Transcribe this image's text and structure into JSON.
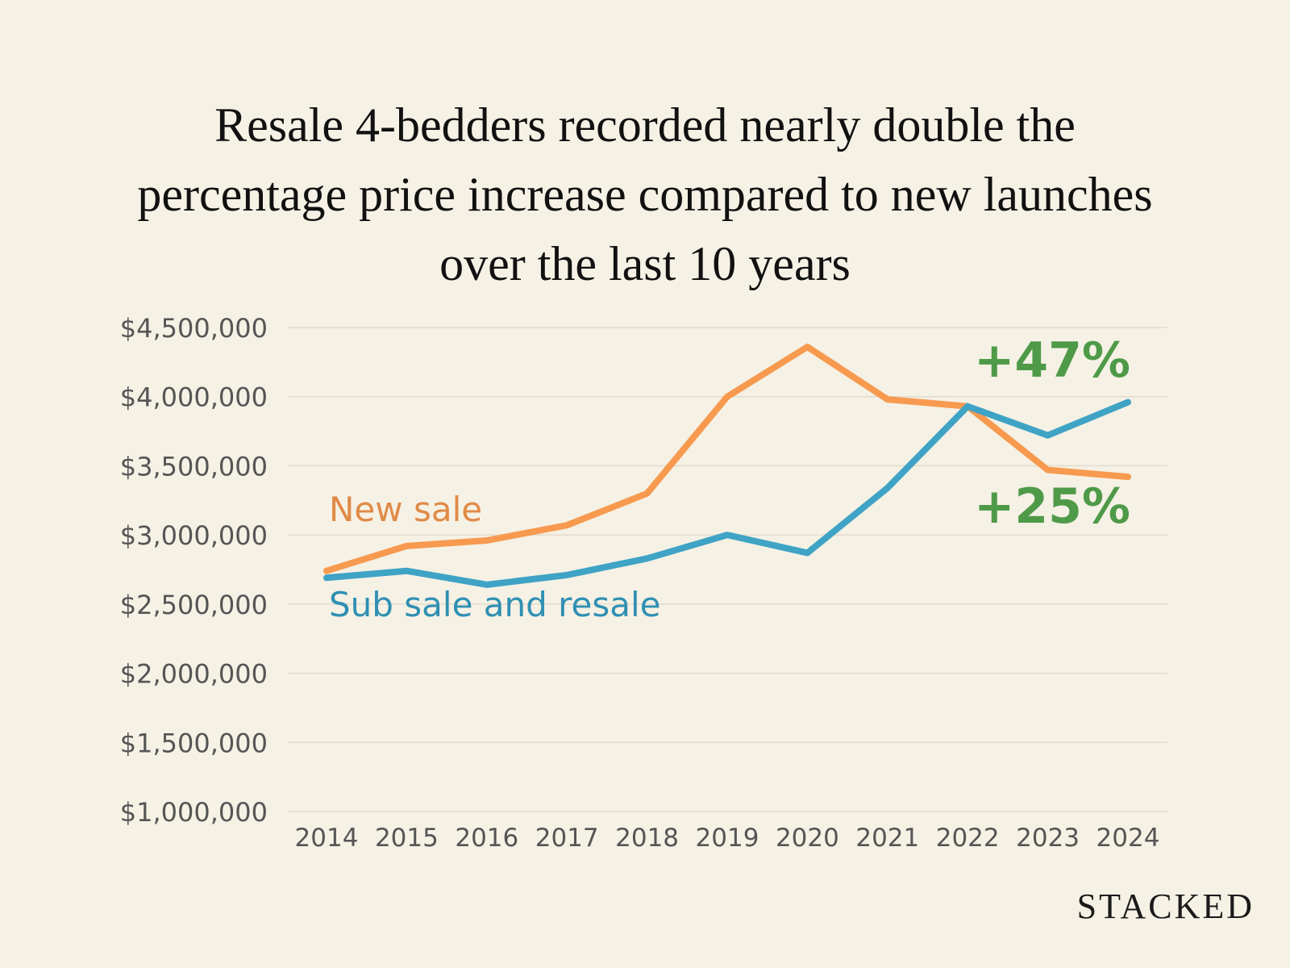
{
  "chart_data": {
    "type": "line",
    "title": "Resale 4-bedders recorded nearly double the percentage price increase compared to new launches over the last 10 years",
    "xlabel": "",
    "ylabel": "",
    "x": [
      "2014",
      "2015",
      "2016",
      "2017",
      "2018",
      "2019",
      "2020",
      "2021",
      "2022",
      "2023",
      "2024"
    ],
    "ylim": [
      1000000,
      4500000
    ],
    "yticks": [
      "$1,000,000",
      "$1,500,000",
      "$2,000,000",
      "$2,500,000",
      "$3,000,000",
      "$3,500,000",
      "$4,000,000",
      "$4,500,000"
    ],
    "ytick_values": [
      1000000,
      1500000,
      2000000,
      2500000,
      3000000,
      3500000,
      4000000,
      4500000
    ],
    "grid": true,
    "series": [
      {
        "name": "New sale",
        "color": "#f79a4f",
        "label_color": "#e08a46",
        "values": [
          2740000,
          2920000,
          2960000,
          3070000,
          3300000,
          4000000,
          4360000,
          3980000,
          3930000,
          3470000,
          3420000
        ]
      },
      {
        "name": "Sub sale and resale",
        "color": "#3fa3c5",
        "label_color": "#2f8fb3",
        "values": [
          2690000,
          2740000,
          2640000,
          2710000,
          2830000,
          3000000,
          2870000,
          3340000,
          3930000,
          3720000,
          3960000
        ]
      }
    ],
    "annotations": [
      {
        "text": "+47%",
        "color": "#4f9a48"
      },
      {
        "text": "+25%",
        "color": "#4f9a48"
      }
    ]
  },
  "brand": "STACKED"
}
